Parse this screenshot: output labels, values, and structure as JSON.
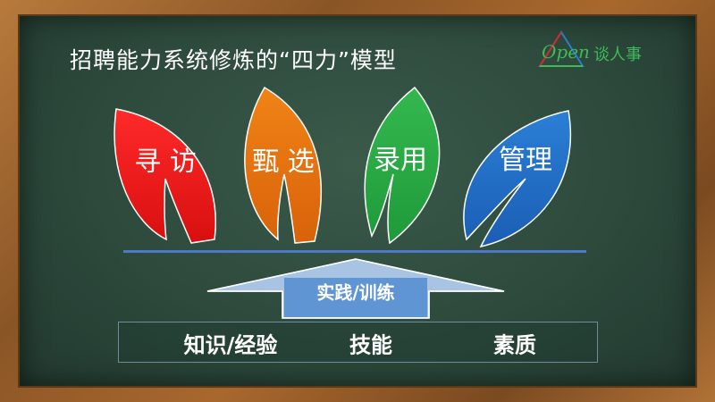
{
  "title": "招聘能力系统修炼的“四力”模型",
  "logo": {
    "word": "Open",
    "chinese": "谈人事"
  },
  "leaves": [
    {
      "label": "寻 访",
      "color": "#f41d1d"
    },
    {
      "label": "甄 选",
      "color": "#e8720c"
    },
    {
      "label": "录用",
      "color": "#27a844"
    },
    {
      "label": "管理",
      "color": "#1f6fc6"
    }
  ],
  "arrow_label": "实践/训练",
  "foundation": [
    "知识/经验",
    "技能",
    "素质"
  ],
  "colors": {
    "board": "#2d4a3c",
    "frame": "#9a6230",
    "line": "#4d78c4",
    "arrow_fill": "#a9c4e3"
  }
}
